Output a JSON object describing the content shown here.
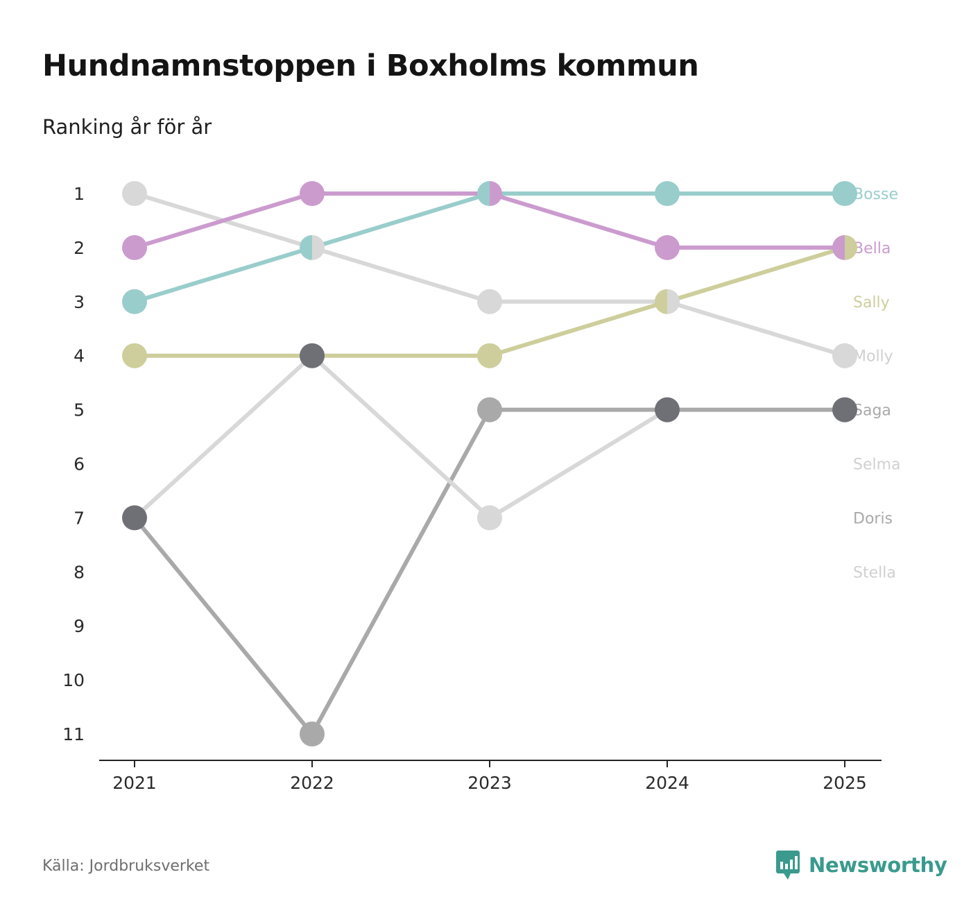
{
  "title": "Hundnamnstoppen i Boxholms kommun",
  "subtitle": "Ranking år för år",
  "source": "Källa: Jordbruksverket",
  "brand": {
    "name": "Newsworthy",
    "color": "#3a9a8e",
    "icon": "bar-chart-badge-icon"
  },
  "chart_data": {
    "type": "line",
    "chart_kind": "bump",
    "x": [
      "2021",
      "2022",
      "2023",
      "2024",
      "2025"
    ],
    "y_ticks": [
      "1",
      "2",
      "3",
      "4",
      "5",
      "6",
      "7",
      "8",
      "9",
      "10",
      "11"
    ],
    "ylim": [
      1,
      11
    ],
    "y_inverted": true,
    "xlabel": "",
    "ylabel": "",
    "series": [
      {
        "name": "Bosse",
        "color": "#99cdcb",
        "values": [
          3,
          2,
          1,
          1,
          1
        ]
      },
      {
        "name": "Bella",
        "color": "#cb9bce",
        "values": [
          2,
          1,
          1,
          2,
          2
        ]
      },
      {
        "name": "Sally",
        "color": "#cdce9b",
        "values": [
          4,
          4,
          4,
          3,
          2
        ]
      },
      {
        "name": "Molly",
        "color": "#d8d8d8",
        "values": [
          1,
          2,
          3,
          3,
          4
        ]
      },
      {
        "name": "Saga",
        "color": "#a9a9aa",
        "values": [
          7,
          11,
          5,
          5,
          5
        ]
      },
      {
        "name": "Selma",
        "color": "#d8d8d8",
        "values": [
          7,
          4,
          7,
          5,
          null
        ]
      },
      {
        "name": "Doris",
        "color": "#a9a9aa",
        "values": [
          null,
          4,
          null,
          5,
          null
        ]
      },
      {
        "name": "Stella",
        "color": "#d8d8d8",
        "values": [
          null,
          null,
          null,
          null,
          null
        ]
      }
    ],
    "markers": [
      {
        "x": "2021",
        "y": 1,
        "colors": [
          "#d8d8d8"
        ]
      },
      {
        "x": "2021",
        "y": 2,
        "colors": [
          "#cb9bce"
        ]
      },
      {
        "x": "2021",
        "y": 3,
        "colors": [
          "#99cdcb"
        ]
      },
      {
        "x": "2021",
        "y": 4,
        "colors": [
          "#cdce9b"
        ]
      },
      {
        "x": "2021",
        "y": 7,
        "colors": [
          "#6f6f76"
        ]
      },
      {
        "x": "2022",
        "y": 1,
        "colors": [
          "#cb9bce"
        ]
      },
      {
        "x": "2022",
        "y": 2,
        "colors": [
          "#99cdcb",
          "#d8d8d8"
        ]
      },
      {
        "x": "2022",
        "y": 4,
        "colors": [
          "#6f6f76"
        ]
      },
      {
        "x": "2022",
        "y": 11,
        "colors": [
          "#a9a9aa"
        ]
      },
      {
        "x": "2023",
        "y": 1,
        "colors": [
          "#99cdcb",
          "#cb9bce"
        ]
      },
      {
        "x": "2023",
        "y": 3,
        "colors": [
          "#d8d8d8"
        ]
      },
      {
        "x": "2023",
        "y": 4,
        "colors": [
          "#cdce9b"
        ]
      },
      {
        "x": "2023",
        "y": 5,
        "colors": [
          "#a9a9aa"
        ]
      },
      {
        "x": "2023",
        "y": 7,
        "colors": [
          "#d8d8d8"
        ]
      },
      {
        "x": "2024",
        "y": 1,
        "colors": [
          "#99cdcb"
        ]
      },
      {
        "x": "2024",
        "y": 2,
        "colors": [
          "#cb9bce"
        ]
      },
      {
        "x": "2024",
        "y": 3,
        "colors": [
          "#cdce9b",
          "#d8d8d8"
        ]
      },
      {
        "x": "2024",
        "y": 5,
        "colors": [
          "#6f6f76"
        ]
      },
      {
        "x": "2025",
        "y": 1,
        "colors": [
          "#99cdcb"
        ]
      },
      {
        "x": "2025",
        "y": 2,
        "colors": [
          "#cb9bce",
          "#cdce9b"
        ]
      },
      {
        "x": "2025",
        "y": 4,
        "colors": [
          "#d8d8d8"
        ]
      },
      {
        "x": "2025",
        "y": 5,
        "colors": [
          "#6f6f76"
        ]
      }
    ],
    "end_labels": [
      {
        "name": "Bosse",
        "rank": 1,
        "color": "#99cdcb"
      },
      {
        "name": "Bella",
        "rank": 2,
        "color": "#cb9bce"
      },
      {
        "name": "Sally",
        "rank": 3,
        "color": "#cdce9b"
      },
      {
        "name": "Molly",
        "rank": 4,
        "color": "#d0d0d0"
      },
      {
        "name": "Saga",
        "rank": 5,
        "color": "#a9a9aa"
      },
      {
        "name": "Selma",
        "rank": 6,
        "color": "#d0d0d0"
      },
      {
        "name": "Doris",
        "rank": 7,
        "color": "#a9a9aa"
      },
      {
        "name": "Stella",
        "rank": 8,
        "color": "#d0d0d0"
      }
    ]
  }
}
